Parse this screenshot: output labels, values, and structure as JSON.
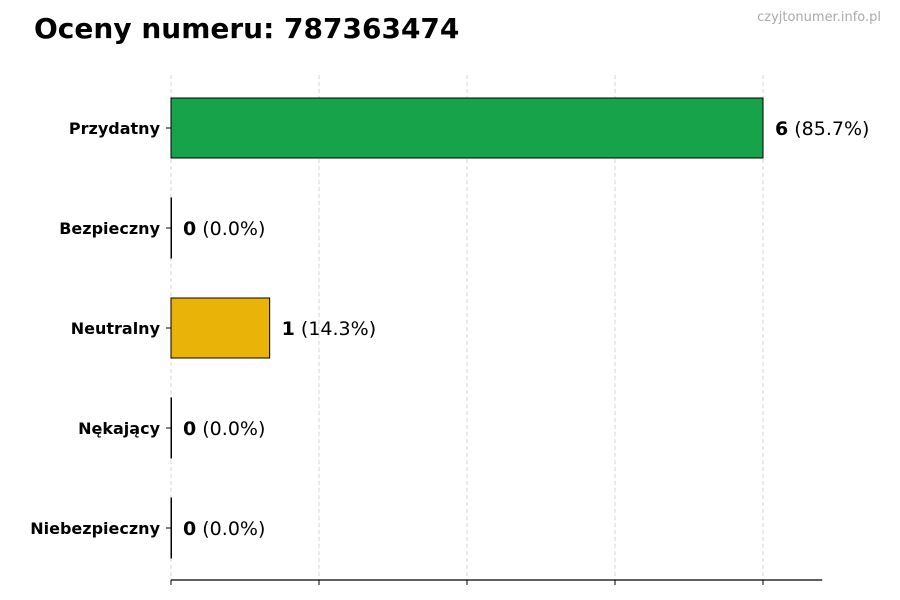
{
  "title": "Oceny numeru: 787363474",
  "watermark": "czyjtonumer.info.pl",
  "chart_data": {
    "type": "bar",
    "orientation": "horizontal",
    "title": "Oceny numeru: 787363474",
    "categories": [
      "Przydatny",
      "Bezpieczny",
      "Neutralny",
      "Nękający",
      "Niebezpieczny"
    ],
    "values": [
      6,
      0,
      1,
      0,
      0
    ],
    "labels": [
      {
        "count": "6",
        "pct": "(85.7%)"
      },
      {
        "count": "0",
        "pct": "(0.0%)"
      },
      {
        "count": "1",
        "pct": "(14.3%)"
      },
      {
        "count": "0",
        "pct": "(0.0%)"
      },
      {
        "count": "0",
        "pct": "(0.0%)"
      }
    ],
    "colors": [
      "#17a34a",
      "#888888",
      "#eab308",
      "#888888",
      "#888888"
    ],
    "xlim": [
      0,
      6.6
    ],
    "xticks": [
      0,
      1.5,
      3,
      4.5,
      6
    ],
    "xtick_labels_shown": false,
    "grid": "x, dashed",
    "xlabel": "",
    "ylabel": ""
  }
}
